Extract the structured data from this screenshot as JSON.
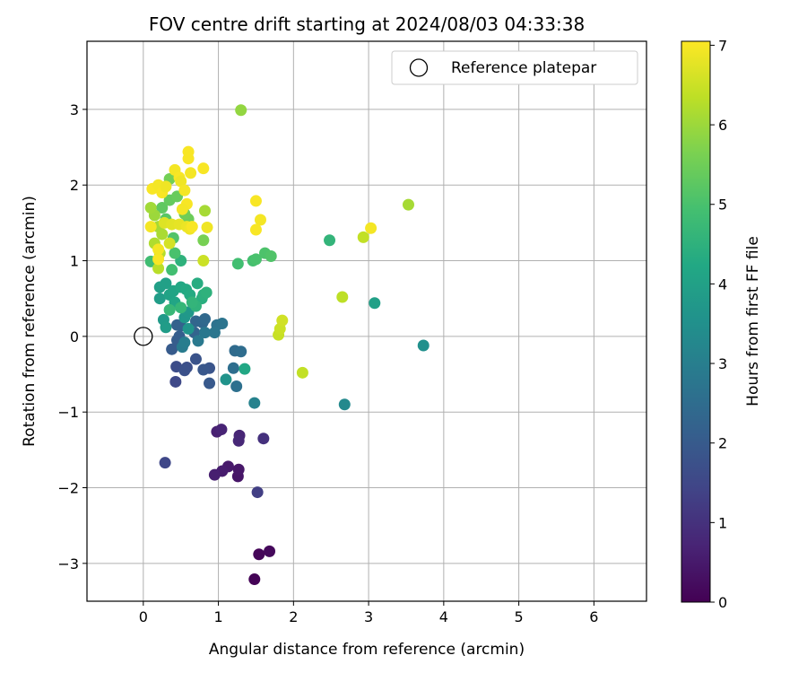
{
  "chart_data": {
    "type": "scatter",
    "title": "FOV centre drift starting at 2024/08/03 04:33:38",
    "xlabel": "Angular distance from reference (arcmin)",
    "ylabel": "Rotation from reference (arcmin)",
    "xlim": [
      -0.75,
      6.7
    ],
    "ylim": [
      -3.5,
      3.9
    ],
    "xticks": [
      0,
      1,
      2,
      3,
      4,
      5,
      6
    ],
    "yticks": [
      -3,
      -2,
      -1,
      0,
      1,
      2,
      3
    ],
    "xtick_labels": [
      "0",
      "1",
      "2",
      "3",
      "4",
      "5",
      "6"
    ],
    "ytick_labels": [
      "−3",
      "−2",
      "−1",
      "0",
      "1",
      "2",
      "3"
    ],
    "grid": true,
    "legend": {
      "position": "top-right",
      "label": "Reference platepar"
    },
    "reference_point": {
      "x": 0,
      "y": 0
    },
    "colorbar": {
      "label": "Hours from first FF file",
      "range": [
        0,
        7.05
      ],
      "ticks": [
        0,
        1,
        2,
        3,
        4,
        5,
        6,
        7
      ],
      "tick_labels": [
        "0",
        "1",
        "2",
        "3",
        "4",
        "5",
        "6",
        "7"
      ],
      "colormap": "viridis"
    },
    "points": [
      {
        "x": 1.48,
        "y": -3.21,
        "c": 0.05
      },
      {
        "x": 1.54,
        "y": -2.88,
        "c": 0.1
      },
      {
        "x": 1.68,
        "y": -2.84,
        "c": 0.15
      },
      {
        "x": 1.26,
        "y": -1.85,
        "c": 0.4
      },
      {
        "x": 1.27,
        "y": -1.76,
        "c": 0.45
      },
      {
        "x": 1.13,
        "y": -1.72,
        "c": 0.5
      },
      {
        "x": 1.05,
        "y": -1.78,
        "c": 0.55
      },
      {
        "x": 0.95,
        "y": -1.83,
        "c": 0.6
      },
      {
        "x": 0.98,
        "y": -1.26,
        "c": 0.65
      },
      {
        "x": 1.04,
        "y": -1.23,
        "c": 0.7
      },
      {
        "x": 1.28,
        "y": -1.31,
        "c": 0.75
      },
      {
        "x": 1.27,
        "y": -1.38,
        "c": 0.8
      },
      {
        "x": 1.6,
        "y": -1.35,
        "c": 1.0
      },
      {
        "x": 1.52,
        "y": -2.06,
        "c": 1.3
      },
      {
        "x": 0.29,
        "y": -1.67,
        "c": 1.5
      },
      {
        "x": 0.43,
        "y": -0.6,
        "c": 1.55
      },
      {
        "x": 0.44,
        "y": -0.4,
        "c": 1.65
      },
      {
        "x": 0.58,
        "y": -0.41,
        "c": 1.7
      },
      {
        "x": 0.55,
        "y": -0.45,
        "c": 1.75
      },
      {
        "x": 0.7,
        "y": -0.3,
        "c": 1.8
      },
      {
        "x": 0.88,
        "y": -0.42,
        "c": 1.85
      },
      {
        "x": 0.8,
        "y": -0.44,
        "c": 1.9
      },
      {
        "x": 0.88,
        "y": -0.62,
        "c": 1.95
      },
      {
        "x": 0.38,
        "y": -0.17,
        "c": 2.0
      },
      {
        "x": 0.45,
        "y": -0.05,
        "c": 2.05
      },
      {
        "x": 0.48,
        "y": 0.0,
        "c": 2.1
      },
      {
        "x": 0.5,
        "y": 0.14,
        "c": 2.15
      },
      {
        "x": 0.45,
        "y": 0.15,
        "c": 2.2
      },
      {
        "x": 0.68,
        "y": 0.05,
        "c": 2.25
      },
      {
        "x": 0.7,
        "y": 0.2,
        "c": 2.3
      },
      {
        "x": 0.79,
        "y": 0.18,
        "c": 2.35
      },
      {
        "x": 0.82,
        "y": 0.23,
        "c": 2.4
      },
      {
        "x": 1.22,
        "y": -0.19,
        "c": 2.45
      },
      {
        "x": 1.3,
        "y": -0.2,
        "c": 2.5
      },
      {
        "x": 1.2,
        "y": -0.42,
        "c": 2.55
      },
      {
        "x": 1.24,
        "y": -0.66,
        "c": 2.6
      },
      {
        "x": 0.98,
        "y": 0.15,
        "c": 2.65
      },
      {
        "x": 1.05,
        "y": 0.17,
        "c": 2.7
      },
      {
        "x": 0.95,
        "y": 0.05,
        "c": 2.75
      },
      {
        "x": 0.82,
        "y": 0.05,
        "c": 2.8
      },
      {
        "x": 0.73,
        "y": -0.06,
        "c": 2.85
      },
      {
        "x": 0.52,
        "y": -0.14,
        "c": 2.9
      },
      {
        "x": 0.55,
        "y": -0.08,
        "c": 2.95
      },
      {
        "x": 1.48,
        "y": -0.88,
        "c": 3.1
      },
      {
        "x": 2.68,
        "y": -0.9,
        "c": 3.3
      },
      {
        "x": 3.73,
        "y": -0.12,
        "c": 3.5
      },
      {
        "x": 1.1,
        "y": -0.57,
        "c": 3.6
      },
      {
        "x": 0.6,
        "y": 0.1,
        "c": 3.65
      },
      {
        "x": 0.55,
        "y": 0.25,
        "c": 3.7
      },
      {
        "x": 0.6,
        "y": 0.32,
        "c": 3.75
      },
      {
        "x": 0.27,
        "y": 0.22,
        "c": 3.8
      },
      {
        "x": 0.3,
        "y": 0.12,
        "c": 3.85
      },
      {
        "x": 0.22,
        "y": 0.5,
        "c": 3.9
      },
      {
        "x": 0.22,
        "y": 0.65,
        "c": 3.95
      },
      {
        "x": 0.3,
        "y": 0.7,
        "c": 4.0
      },
      {
        "x": 0.35,
        "y": 0.55,
        "c": 4.05
      },
      {
        "x": 0.4,
        "y": 0.6,
        "c": 4.1
      },
      {
        "x": 0.42,
        "y": 0.45,
        "c": 4.15
      },
      {
        "x": 0.5,
        "y": 0.65,
        "c": 4.2
      },
      {
        "x": 0.57,
        "y": 0.62,
        "c": 4.25
      },
      {
        "x": 0.62,
        "y": 0.55,
        "c": 4.3
      },
      {
        "x": 0.72,
        "y": 0.7,
        "c": 4.35
      },
      {
        "x": 0.78,
        "y": 0.5,
        "c": 4.4
      },
      {
        "x": 0.8,
        "y": 0.55,
        "c": 4.45
      },
      {
        "x": 0.84,
        "y": 0.58,
        "c": 4.5
      },
      {
        "x": 0.7,
        "y": 0.4,
        "c": 4.55
      },
      {
        "x": 0.65,
        "y": 0.45,
        "c": 4.6
      },
      {
        "x": 0.5,
        "y": 0.38,
        "c": 4.65
      },
      {
        "x": 0.35,
        "y": 0.35,
        "c": 4.7
      },
      {
        "x": 0.5,
        "y": 1.0,
        "c": 4.5
      },
      {
        "x": 1.35,
        "y": -0.43,
        "c": 4.2
      },
      {
        "x": 3.08,
        "y": 0.44,
        "c": 4.0
      },
      {
        "x": 2.48,
        "y": 1.27,
        "c": 4.6
      },
      {
        "x": 1.26,
        "y": 0.96,
        "c": 4.9
      },
      {
        "x": 1.46,
        "y": 1.0,
        "c": 4.95
      },
      {
        "x": 1.5,
        "y": 1.02,
        "c": 5.0
      },
      {
        "x": 1.62,
        "y": 1.1,
        "c": 5.05
      },
      {
        "x": 1.7,
        "y": 1.06,
        "c": 5.1
      },
      {
        "x": 0.1,
        "y": 0.99,
        "c": 4.85
      },
      {
        "x": 0.38,
        "y": 0.88,
        "c": 4.9
      },
      {
        "x": 0.42,
        "y": 1.1,
        "c": 5.0
      },
      {
        "x": 0.4,
        "y": 1.3,
        "c": 5.1
      },
      {
        "x": 0.3,
        "y": 1.55,
        "c": 5.2
      },
      {
        "x": 0.25,
        "y": 1.7,
        "c": 5.3
      },
      {
        "x": 0.35,
        "y": 1.8,
        "c": 5.35
      },
      {
        "x": 0.45,
        "y": 1.85,
        "c": 5.4
      },
      {
        "x": 0.6,
        "y": 1.55,
        "c": 5.45
      },
      {
        "x": 0.55,
        "y": 1.62,
        "c": 5.5
      },
      {
        "x": 0.35,
        "y": 2.08,
        "c": 5.55
      },
      {
        "x": 0.8,
        "y": 1.27,
        "c": 5.6
      },
      {
        "x": 1.3,
        "y": 2.99,
        "c": 5.9
      },
      {
        "x": 3.53,
        "y": 1.74,
        "c": 6.1
      },
      {
        "x": 0.82,
        "y": 1.66,
        "c": 6.1
      },
      {
        "x": 0.15,
        "y": 1.6,
        "c": 6.0
      },
      {
        "x": 0.1,
        "y": 1.7,
        "c": 6.05
      },
      {
        "x": 0.2,
        "y": 1.45,
        "c": 6.1
      },
      {
        "x": 0.25,
        "y": 1.35,
        "c": 6.15
      },
      {
        "x": 0.15,
        "y": 1.23,
        "c": 6.2
      },
      {
        "x": 0.22,
        "y": 1.1,
        "c": 6.25
      },
      {
        "x": 0.2,
        "y": 0.9,
        "c": 6.3
      },
      {
        "x": 2.65,
        "y": 0.52,
        "c": 6.35
      },
      {
        "x": 2.93,
        "y": 1.31,
        "c": 6.4
      },
      {
        "x": 1.8,
        "y": 0.02,
        "c": 6.45
      },
      {
        "x": 1.82,
        "y": 0.1,
        "c": 6.5
      },
      {
        "x": 1.85,
        "y": 0.21,
        "c": 6.55
      },
      {
        "x": 2.12,
        "y": -0.48,
        "c": 6.4
      },
      {
        "x": 0.8,
        "y": 1.0,
        "c": 6.5
      },
      {
        "x": 0.35,
        "y": 1.23,
        "c": 6.6
      },
      {
        "x": 0.28,
        "y": 1.5,
        "c": 6.7
      },
      {
        "x": 0.38,
        "y": 1.48,
        "c": 6.75
      },
      {
        "x": 0.48,
        "y": 1.48,
        "c": 6.8
      },
      {
        "x": 0.58,
        "y": 1.45,
        "c": 6.85
      },
      {
        "x": 0.62,
        "y": 1.42,
        "c": 6.9
      },
      {
        "x": 0.1,
        "y": 1.45,
        "c": 6.95
      },
      {
        "x": 0.12,
        "y": 1.95,
        "c": 7.0
      },
      {
        "x": 0.2,
        "y": 2.0,
        "c": 6.95
      },
      {
        "x": 0.25,
        "y": 1.9,
        "c": 7.0
      },
      {
        "x": 0.3,
        "y": 1.98,
        "c": 6.9
      },
      {
        "x": 0.42,
        "y": 2.2,
        "c": 6.95
      },
      {
        "x": 0.48,
        "y": 2.1,
        "c": 7.0
      },
      {
        "x": 0.5,
        "y": 2.05,
        "c": 6.9
      },
      {
        "x": 0.55,
        "y": 1.93,
        "c": 6.95
      },
      {
        "x": 0.6,
        "y": 2.35,
        "c": 7.0
      },
      {
        "x": 0.6,
        "y": 2.44,
        "c": 7.0
      },
      {
        "x": 0.63,
        "y": 2.16,
        "c": 6.95
      },
      {
        "x": 0.8,
        "y": 2.22,
        "c": 7.0
      },
      {
        "x": 0.58,
        "y": 1.75,
        "c": 7.0
      },
      {
        "x": 0.52,
        "y": 1.68,
        "c": 6.95
      },
      {
        "x": 0.65,
        "y": 1.45,
        "c": 7.0
      },
      {
        "x": 0.85,
        "y": 1.44,
        "c": 6.9
      },
      {
        "x": 1.5,
        "y": 1.79,
        "c": 7.0
      },
      {
        "x": 1.56,
        "y": 1.54,
        "c": 6.95
      },
      {
        "x": 1.5,
        "y": 1.41,
        "c": 7.0
      },
      {
        "x": 3.03,
        "y": 1.43,
        "c": 6.95
      },
      {
        "x": 0.2,
        "y": 1.02,
        "c": 7.0
      },
      {
        "x": 0.2,
        "y": 1.15,
        "c": 6.95
      }
    ]
  },
  "colors": {
    "reference_marker_edge": "#000000",
    "grid": "#b0b0b0",
    "axis": "#000000"
  }
}
